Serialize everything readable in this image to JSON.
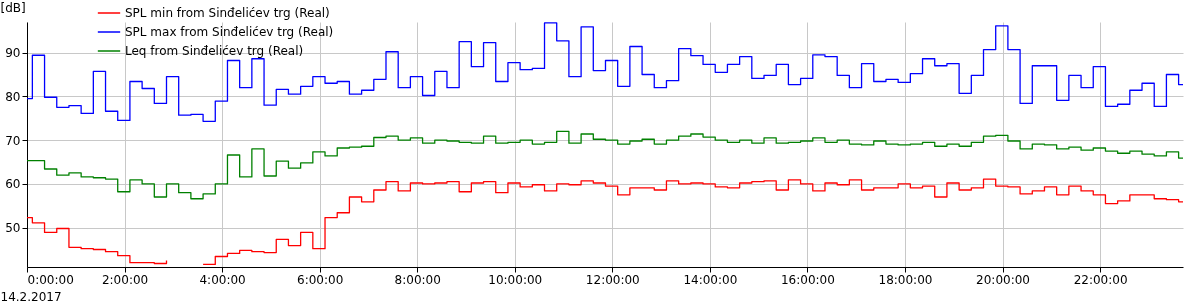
{
  "chart_data": {
    "type": "step",
    "ylabel": "[dB]",
    "xlabel": "14.2.2017",
    "x": [
      0,
      0.11,
      0.36,
      0.61,
      0.86,
      1.11,
      1.36,
      1.61,
      1.86,
      2.11,
      2.36,
      2.61,
      2.86,
      3.11,
      3.36,
      3.61,
      3.86,
      4.11,
      4.36,
      4.61,
      4.86,
      5.11,
      5.36,
      5.61,
      5.86,
      6.11,
      6.36,
      6.61,
      6.86,
      7.11,
      7.36,
      7.61,
      7.86,
      8.11,
      8.36,
      8.61,
      8.86,
      9.11,
      9.36,
      9.61,
      9.86,
      10.11,
      10.36,
      10.61,
      10.86,
      11.11,
      11.36,
      11.61,
      11.86,
      12.11,
      12.36,
      12.61,
      12.86,
      13.11,
      13.36,
      13.61,
      13.86,
      14.11,
      14.36,
      14.61,
      14.86,
      15.11,
      15.36,
      15.61,
      15.86,
      16.11,
      16.36,
      16.61,
      16.86,
      17.11,
      17.36,
      17.61,
      17.86,
      18.11,
      18.36,
      18.61,
      18.86,
      19.11,
      19.36,
      19.61,
      19.86,
      20.11,
      20.36,
      20.61,
      20.86,
      21.11,
      21.36,
      21.61,
      21.86,
      22.11,
      22.36,
      22.61,
      22.86,
      23.11,
      23.36,
      23.61,
      23.7
    ],
    "series": [
      {
        "name": "SPL min from Sinđelićev trg (Real)",
        "color": "#ff0000",
        "values": [
          52.3,
          51.1,
          48.9,
          49.8,
          45.5,
          45.2,
          45.0,
          44.5,
          43.6,
          42.0,
          42.0,
          41.8,
          42.5,
          null,
          null,
          41.6,
          43.4,
          44.1,
          44.8,
          44.5,
          44.3,
          47.3,
          45.9,
          48.9,
          45.2,
          52.3,
          53.4,
          57.0,
          55.9,
          58.6,
          60.5,
          58.4,
          60.2,
          60.0,
          60.2,
          60.5,
          58.2,
          60.2,
          60.5,
          58.0,
          60.2,
          59.3,
          59.8,
          58.4,
          60.0,
          59.8,
          60.7,
          60.2,
          59.5,
          57.5,
          59.1,
          59.1,
          58.6,
          60.7,
          60.0,
          60.2,
          60.0,
          59.3,
          59.1,
          60.2,
          60.5,
          60.7,
          58.6,
          60.9,
          60.0,
          58.4,
          60.2,
          59.8,
          60.9,
          58.6,
          59.1,
          59.1,
          60.0,
          59.1,
          59.5,
          57.0,
          60.2,
          58.6,
          59.1,
          61.1,
          59.5,
          59.3,
          57.7,
          58.4,
          59.3,
          57.5,
          59.5,
          58.4,
          57.5,
          55.5,
          56.1,
          57.5,
          57.5,
          56.6,
          56.4,
          55.9,
          55.9
        ]
      },
      {
        "name": "SPL max from Sinđelićev trg (Real)",
        "color": "#0000ff",
        "values": [
          79.5,
          89.4,
          79.8,
          77.5,
          77.9,
          76.1,
          85.7,
          76.6,
          74.5,
          83.4,
          81.8,
          78.4,
          84.5,
          75.7,
          75.9,
          74.3,
          78.9,
          88.2,
          82.0,
          88.6,
          78.0,
          81.6,
          80.5,
          82.3,
          84.5,
          83.0,
          83.4,
          80.5,
          81.4,
          83.9,
          90.2,
          82.0,
          84.5,
          80.2,
          85.7,
          82.0,
          92.5,
          86.8,
          92.3,
          83.4,
          87.7,
          86.1,
          86.4,
          96.8,
          92.7,
          84.5,
          95.9,
          85.9,
          88.2,
          82.3,
          91.4,
          85.0,
          82.0,
          83.6,
          90.9,
          89.3,
          87.3,
          85.5,
          87.3,
          89.1,
          84.1,
          84.8,
          87.3,
          82.7,
          84.1,
          89.5,
          89.1,
          84.8,
          82.0,
          87.5,
          83.4,
          83.9,
          83.2,
          85.2,
          88.6,
          87.0,
          87.5,
          80.7,
          84.8,
          90.7,
          96.1,
          90.7,
          78.4,
          87.0,
          87.0,
          79.1,
          84.8,
          82.0,
          86.8,
          77.7,
          78.2,
          81.4,
          83.0,
          77.7,
          85.0,
          82.7,
          82.7
        ]
      },
      {
        "name": "Leq from Sinđelićev trg (Real)",
        "color": "#008000",
        "values": [
          65.3,
          65.3,
          63.4,
          62.0,
          62.5,
          61.6,
          61.4,
          61.1,
          58.2,
          60.9,
          60.0,
          57.0,
          60.0,
          58.0,
          56.6,
          57.7,
          60.0,
          66.6,
          61.6,
          68.0,
          61.8,
          65.2,
          63.6,
          64.8,
          67.3,
          66.4,
          68.2,
          68.4,
          68.6,
          70.6,
          70.9,
          70.0,
          70.5,
          69.3,
          70.0,
          69.8,
          69.5,
          69.3,
          70.9,
          69.3,
          69.5,
          70.0,
          69.1,
          69.5,
          72.0,
          69.3,
          71.4,
          70.2,
          70.0,
          69.1,
          69.8,
          70.2,
          69.1,
          70.0,
          70.9,
          71.4,
          70.7,
          70.0,
          69.5,
          70.0,
          69.3,
          70.5,
          69.3,
          69.5,
          69.8,
          70.5,
          69.5,
          70.0,
          69.1,
          68.9,
          69.8,
          69.1,
          68.9,
          69.1,
          69.5,
          68.6,
          69.1,
          68.6,
          69.5,
          70.9,
          71.1,
          69.8,
          68.0,
          69.1,
          68.9,
          68.0,
          68.4,
          67.7,
          68.2,
          67.5,
          67.0,
          67.5,
          66.8,
          66.4,
          67.3,
          65.9,
          65.9
        ]
      }
    ],
    "xlim": [
      0,
      23.7
    ],
    "ylim": [
      41,
      97
    ],
    "yticks": [
      50,
      60,
      70,
      80,
      90
    ],
    "xticks": [
      {
        "value": 0,
        "label": "0:00:00"
      },
      {
        "value": 2,
        "label": "2:00:00"
      },
      {
        "value": 4,
        "label": "4:00:00"
      },
      {
        "value": 6,
        "label": "6:00:00"
      },
      {
        "value": 8,
        "label": "8:00:00"
      },
      {
        "value": 10,
        "label": "10:00:00"
      },
      {
        "value": 12,
        "label": "12:00:00"
      },
      {
        "value": 14,
        "label": "14:00:00"
      },
      {
        "value": 16,
        "label": "16:00:00"
      },
      {
        "value": 18,
        "label": "18:00:00"
      },
      {
        "value": 20,
        "label": "20:00:00"
      },
      {
        "value": 22,
        "label": "22:00:00"
      }
    ],
    "grid": true,
    "legend": "top left",
    "line_style": "solid"
  }
}
